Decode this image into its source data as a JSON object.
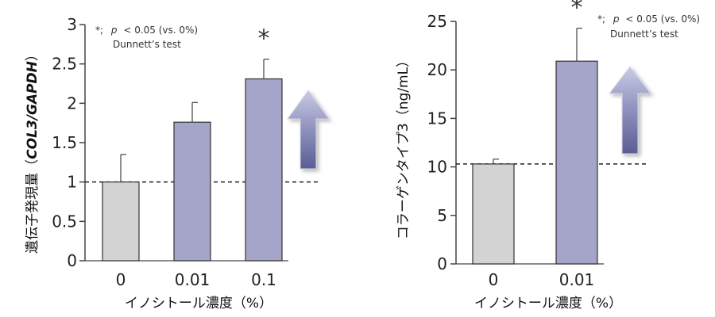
{
  "charts": [
    {
      "type": "bar",
      "categories": [
        "0",
        "0.01",
        "0.1"
      ],
      "values": [
        1.0,
        1.76,
        2.31
      ],
      "errors": [
        0.35,
        0.25,
        0.25
      ],
      "significant": [
        false,
        false,
        true
      ],
      "ylim": [
        0,
        3
      ],
      "yticks": [
        "0",
        "0.5",
        "1",
        "1.5",
        "2",
        "2.5",
        "3"
      ],
      "ytick_values": [
        0,
        0.5,
        1,
        1.5,
        2,
        2.5,
        3
      ],
      "reference_line": 1.0,
      "ylabel_prefix": "遺伝子発現量（",
      "ylabel_italic": "COL3/GAPDH",
      "ylabel_suffix": "）",
      "xlabel": "イノシトール濃度（%）",
      "note_line1_prefix": "*;",
      "note_line1_italic": "p",
      "note_line1_suffix": "< 0.05 (vs. 0%)",
      "note_line2": "Dunnett’s test",
      "star": "*",
      "bar_colors": [
        "#d3d3d3",
        "#a5a5c9",
        "#a5a5c9"
      ]
    },
    {
      "type": "bar",
      "categories": [
        "0",
        "0.01"
      ],
      "values": [
        10.3,
        20.9
      ],
      "errors": [
        0.5,
        3.4
      ],
      "significant": [
        false,
        true
      ],
      "ylim": [
        0,
        25
      ],
      "yticks": [
        "0",
        "5",
        "10",
        "15",
        "20",
        "25"
      ],
      "ytick_values": [
        0,
        5,
        10,
        15,
        20,
        25
      ],
      "reference_line": 10.3,
      "ylabel": "コラーゲンタイプ3（ng/mL）",
      "xlabel": "イノシトール濃度（%）",
      "note_line1_prefix": "*;",
      "note_line1_italic": "p",
      "note_line1_suffix": "< 0.05 (vs. 0%)",
      "note_line2": "Dunnett’s test",
      "star": "*",
      "bar_colors": [
        "#d3d3d3",
        "#a5a5c9"
      ]
    }
  ],
  "chart_data": [
    {
      "type": "bar",
      "categories": [
        "0",
        "0.01",
        "0.1"
      ],
      "values": [
        1.0,
        1.76,
        2.31
      ],
      "error_bars": [
        0.35,
        0.25,
        0.25
      ],
      "xlabel": "イノシトール濃度（%）",
      "ylabel": "遺伝子発現量（COL3/GAPDH）",
      "ylim": [
        0,
        3
      ]
    },
    {
      "type": "bar",
      "categories": [
        "0",
        "0.01"
      ],
      "values": [
        10.3,
        20.9
      ],
      "error_bars": [
        0.5,
        3.4
      ],
      "xlabel": "イノシトール濃度（%）",
      "ylabel": "コラーゲンタイプ3（ng/mL）",
      "ylim": [
        0,
        25
      ]
    }
  ]
}
